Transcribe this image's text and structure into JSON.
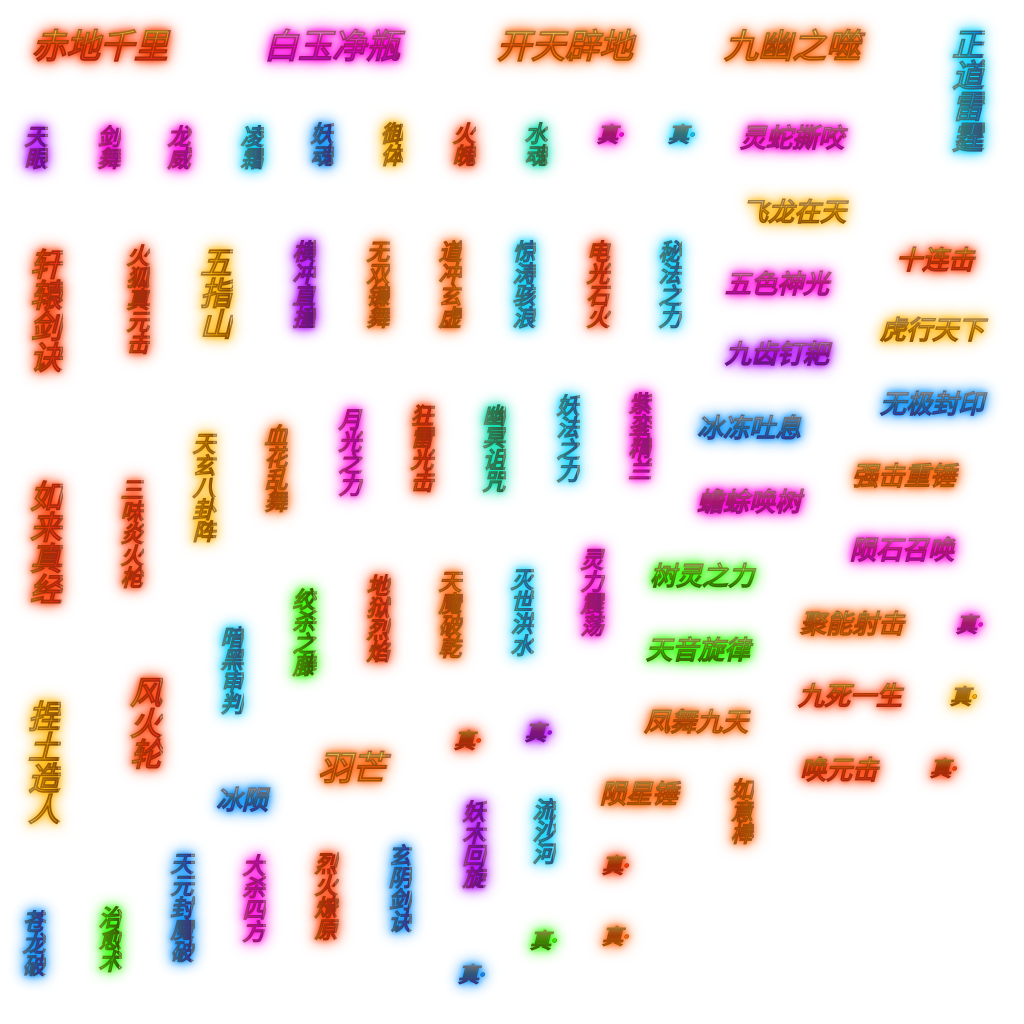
{
  "palette": {
    "red": [
      "#ff2b1a",
      "#ffd23f",
      "#ff3b00"
    ],
    "orange": [
      "#ff8a00",
      "#ffe066",
      "#ff5e00"
    ],
    "gold": [
      "#c07a00",
      "#ffe9a0",
      "#ffb300"
    ],
    "magenta": [
      "#d000ff",
      "#ff9cf5",
      "#ff00e0"
    ],
    "purple": [
      "#6a00ff",
      "#d9a6ff",
      "#b000ff"
    ],
    "cyan": [
      "#0088ff",
      "#b3f5ff",
      "#00d0ff"
    ],
    "teal": [
      "#00a07a",
      "#c8ffe8",
      "#00e0b0"
    ],
    "green": [
      "#109000",
      "#c8ff8a",
      "#2cff00"
    ],
    "blue": [
      "#1040ff",
      "#a8d4ff",
      "#0090ff"
    ]
  },
  "labels": [
    {
      "id": "chidiqianli",
      "text": "赤地千里",
      "style": "red"
    },
    {
      "id": "baiyujingping",
      "text": "白玉净瓶",
      "style": "magenta"
    },
    {
      "id": "kaitianpidi",
      "text": "开天辟地",
      "style": "orange"
    },
    {
      "id": "jiuyouzhishi",
      "text": "九幽之噬",
      "style": "orange"
    },
    {
      "id": "zhengdaoleiting",
      "text": "正道雷霆",
      "style": "cyan"
    },
    {
      "id": "tianyan",
      "text": "天眼",
      "style": "purple"
    },
    {
      "id": "jianwu",
      "text": "剑舞",
      "style": "magenta"
    },
    {
      "id": "longwei",
      "text": "龙威",
      "style": "magenta"
    },
    {
      "id": "lingshuang",
      "text": "凌霜",
      "style": "cyan"
    },
    {
      "id": "yaohun",
      "text": "妖魂",
      "style": "blue"
    },
    {
      "id": "yuti",
      "text": "御体",
      "style": "gold"
    },
    {
      "id": "huopo",
      "text": "火魄",
      "style": "red"
    },
    {
      "id": "shuihun",
      "text": "水魂",
      "style": "teal"
    },
    {
      "id": "zhen-a",
      "text": "真·",
      "style": "magenta"
    },
    {
      "id": "zhen-b",
      "text": "真·",
      "style": "cyan"
    },
    {
      "id": "lingshesiyao",
      "text": "灵蛇撕咬",
      "style": "magenta"
    },
    {
      "id": "feilongzaitian",
      "text": "飞龙在天",
      "style": "gold"
    },
    {
      "id": "xuanyuanjianjue",
      "text": "轩辕剑诀",
      "style": "red"
    },
    {
      "id": "huohuzhenyuanji",
      "text": "火狐真元击",
      "style": "red"
    },
    {
      "id": "wuzhishan",
      "text": "五指山",
      "style": "gold"
    },
    {
      "id": "hengchongzhizhuang",
      "text": "横冲直撞",
      "style": "purple"
    },
    {
      "id": "wushuanglianwu",
      "text": "无双镰舞",
      "style": "orange"
    },
    {
      "id": "daochongxuanxu",
      "text": "道冲玄虚",
      "style": "orange"
    },
    {
      "id": "jingtaohailang",
      "text": "惊涛骇浪",
      "style": "cyan"
    },
    {
      "id": "dianguangshihuo",
      "text": "电光石火",
      "style": "red"
    },
    {
      "id": "mifazhili",
      "text": "秘法之力",
      "style": "cyan"
    },
    {
      "id": "wuseshenguang",
      "text": "五色神光",
      "style": "magenta"
    },
    {
      "id": "shilianji",
      "text": "十连击",
      "style": "red"
    },
    {
      "id": "huxingtianxia",
      "text": "虎行天下",
      "style": "gold"
    },
    {
      "id": "jiuchidingpa",
      "text": "九齿钉耙",
      "style": "purple"
    },
    {
      "id": "wujifengyin",
      "text": "无极封印",
      "style": "blue"
    },
    {
      "id": "tianxuanbaguazhen",
      "text": "天玄八卦阵",
      "style": "gold"
    },
    {
      "id": "xuehualuanwu",
      "text": "血花乱舞",
      "style": "orange"
    },
    {
      "id": "yueguangzhili",
      "text": "月光之力",
      "style": "magenta"
    },
    {
      "id": "kuangleiguangji",
      "text": "狂雷光击",
      "style": "red"
    },
    {
      "id": "youmingzuzhou",
      "text": "幽冥诅咒",
      "style": "teal"
    },
    {
      "id": "yaofazhili",
      "text": "妖法之力",
      "style": "cyan"
    },
    {
      "id": "ziluanjinglan",
      "text": "紫銮精兰",
      "style": "magenta"
    },
    {
      "id": "bingdongtuxi",
      "text": "冰冻吐息",
      "style": "blue"
    },
    {
      "id": "qiangjizhongchui",
      "text": "强击重锤",
      "style": "orange"
    },
    {
      "id": "rulaizhenjing",
      "text": "如来真经",
      "style": "red"
    },
    {
      "id": "sanweiyanhuoqiang",
      "text": "三味炎火枪",
      "style": "red"
    },
    {
      "id": "chanchuhuanshu",
      "text": "蟾蜍唤树",
      "style": "magenta"
    },
    {
      "id": "yunshizhaohuan",
      "text": "陨石召唤",
      "style": "magenta"
    },
    {
      "id": "shulingzhili",
      "text": "树灵之力",
      "style": "green"
    },
    {
      "id": "juxuesheji",
      "text": "聚能射击",
      "style": "orange"
    },
    {
      "id": "zhen-c",
      "text": "真·",
      "style": "magenta"
    },
    {
      "id": "anheishenpan",
      "text": "暗黑审判",
      "style": "cyan"
    },
    {
      "id": "jiaoshazhiteng",
      "text": "绞杀之藤",
      "style": "green"
    },
    {
      "id": "diyulieyan",
      "text": "地狱烈焰",
      "style": "red"
    },
    {
      "id": "tianmopoqian",
      "text": "天魔破乾",
      "style": "orange"
    },
    {
      "id": "mieshihongshui",
      "text": "灭世洪水",
      "style": "cyan"
    },
    {
      "id": "linglizhendang",
      "text": "灵力震荡",
      "style": "magenta"
    },
    {
      "id": "tianyinxuanlv",
      "text": "天音旋律",
      "style": "green"
    },
    {
      "id": "jiusiyisheng",
      "text": "九死一生",
      "style": "red"
    },
    {
      "id": "zhen-d",
      "text": "真·",
      "style": "gold"
    },
    {
      "id": "fengwujiutian",
      "text": "凤舞九天",
      "style": "orange"
    },
    {
      "id": "niantuzaoren",
      "text": "捏土造人",
      "style": "gold"
    },
    {
      "id": "fenghuolun",
      "text": "风火轮",
      "style": "red"
    },
    {
      "id": "yumang",
      "text": "羽芒",
      "style": "orange"
    },
    {
      "id": "zhen-e",
      "text": "真·",
      "style": "red"
    },
    {
      "id": "zhen-f",
      "text": "真·",
      "style": "purple"
    },
    {
      "id": "huanyuanji",
      "text": "唤元击",
      "style": "red"
    },
    {
      "id": "zhen-g",
      "text": "真·",
      "style": "red"
    },
    {
      "id": "bingyun",
      "text": "冰陨",
      "style": "blue"
    },
    {
      "id": "yunxingchui",
      "text": "陨星锤",
      "style": "orange"
    },
    {
      "id": "rulaizhang",
      "text": "如意棒",
      "style": "orange"
    },
    {
      "id": "yaomuhuixuan",
      "text": "妖木回旋",
      "style": "purple"
    },
    {
      "id": "liushahe",
      "text": "流沙河",
      "style": "cyan"
    },
    {
      "id": "zhen-h",
      "text": "真·",
      "style": "red"
    },
    {
      "id": "canglongpo",
      "text": "苍龙破",
      "style": "blue"
    },
    {
      "id": "zhiyushu",
      "text": "治愈术",
      "style": "green"
    },
    {
      "id": "tianyuanfengmopo",
      "text": "天元封魔破",
      "style": "blue"
    },
    {
      "id": "dashasifang",
      "text": "大杀四方",
      "style": "magenta"
    },
    {
      "id": "liehuoliaoyuan",
      "text": "烈火燎原",
      "style": "red"
    },
    {
      "id": "xuanyinjianjue",
      "text": "玄阴剑诀",
      "style": "blue"
    },
    {
      "id": "zhen-i",
      "text": "真·",
      "style": "blue"
    },
    {
      "id": "zhen-j",
      "text": "真·",
      "style": "green"
    },
    {
      "id": "zhen-k",
      "text": "真·",
      "style": "orange"
    }
  ]
}
